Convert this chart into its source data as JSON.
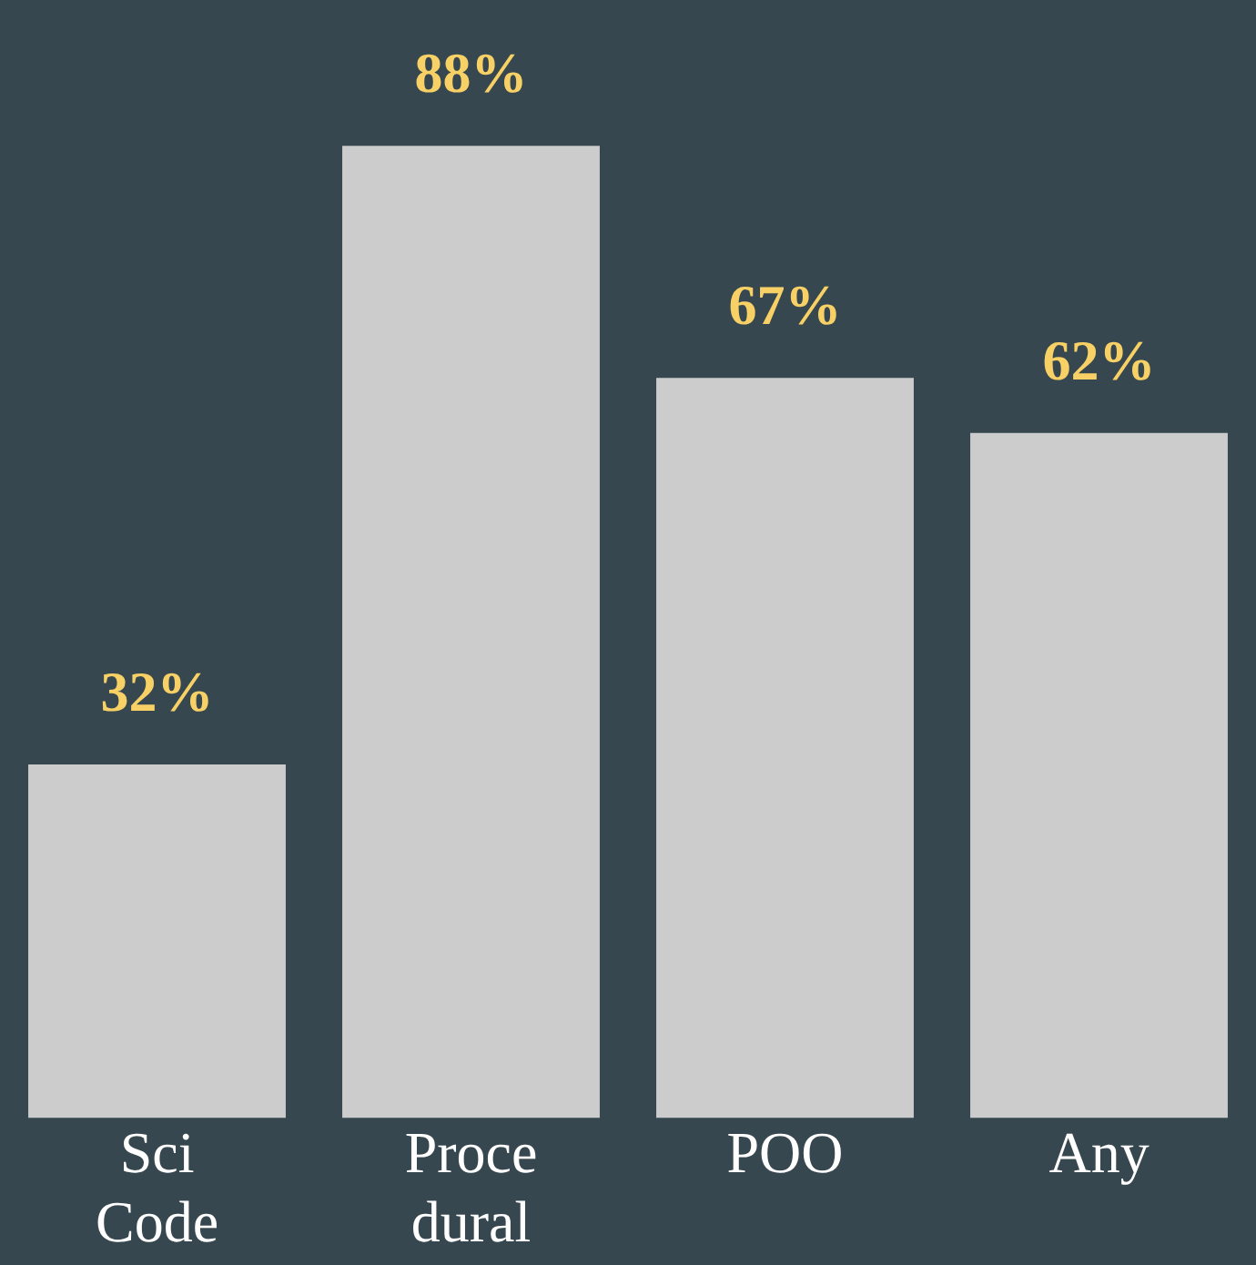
{
  "chart_data": {
    "type": "bar",
    "categories": [
      "Sci\nCode",
      "Proce\ndural",
      "POO",
      "Any"
    ],
    "values": [
      32,
      88,
      67,
      62
    ],
    "value_labels": [
      "32%",
      "88%",
      "67%",
      "62%"
    ],
    "color": "#cccccc",
    "grid": false,
    "legend": false
  }
}
